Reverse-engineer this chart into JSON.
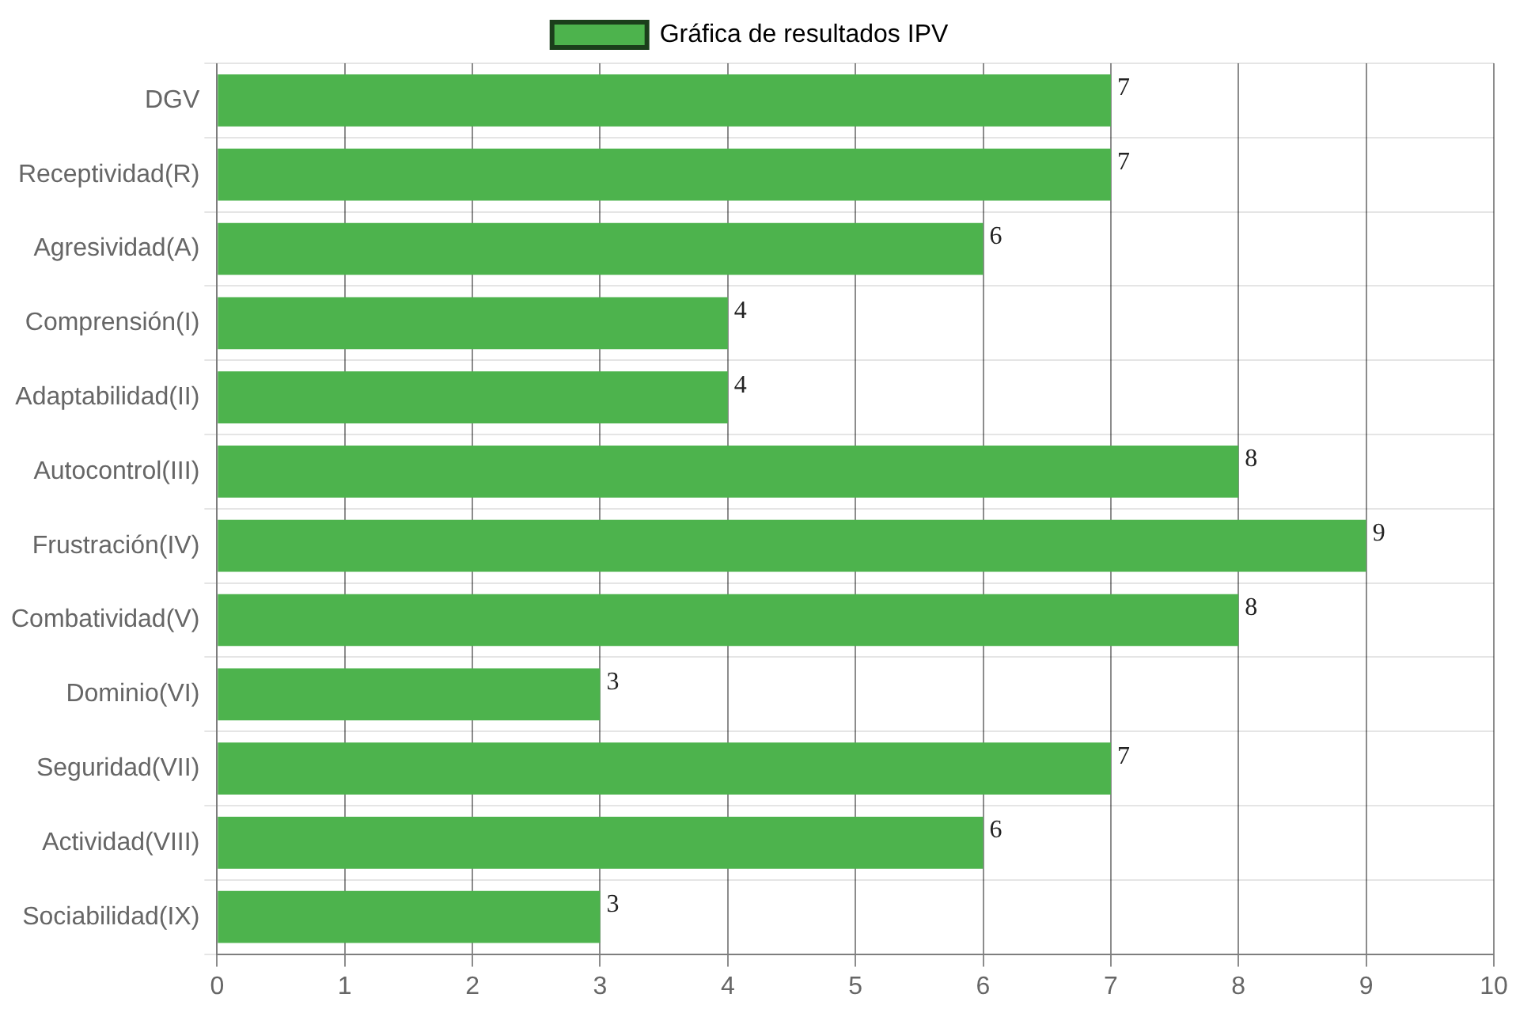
{
  "chart_data": {
    "type": "bar",
    "orientation": "horizontal",
    "categories": [
      "DGV",
      "Receptividad(R)",
      "Agresividad(A)",
      "Comprensión(I)",
      "Adaptabilidad(II)",
      "Autocontrol(III)",
      "Frustración(IV)",
      "Combatividad(V)",
      "Dominio(VI)",
      "Seguridad(VII)",
      "Actividad(VIII)",
      "Sociabilidad(IX)"
    ],
    "series": [
      {
        "name": "Gráfica de resultados IPV",
        "color": "#4db34d",
        "values": [
          7,
          7,
          6,
          4,
          4,
          8,
          9,
          8,
          3,
          7,
          6,
          3
        ]
      }
    ],
    "xlim": [
      0,
      10
    ],
    "xticks": [
      0,
      1,
      2,
      3,
      4,
      5,
      6,
      7,
      8,
      9,
      10
    ],
    "grid": true,
    "legend": "top",
    "data_labels": true
  }
}
